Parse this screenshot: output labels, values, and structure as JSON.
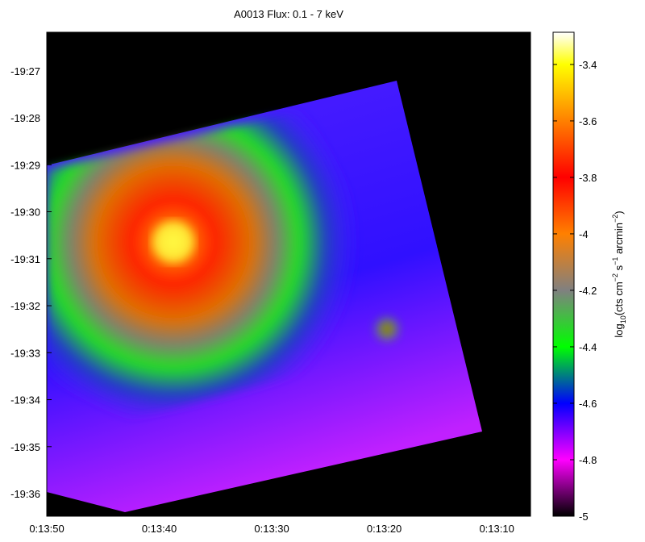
{
  "chart_data": {
    "type": "heatmap",
    "title": "A0013 Flux: 0.1 - 7 keV",
    "xlim": [
      830,
      787
    ],
    "xticks": [
      {
        "value": 830,
        "label": "0:13:50"
      },
      {
        "value": 820,
        "label": "0:13:40"
      },
      {
        "value": 810,
        "label": "0:13:30"
      },
      {
        "value": 800,
        "label": "0:13:20"
      },
      {
        "value": 790,
        "label": "0:13:10"
      }
    ],
    "ylim": [
      -1176.48,
      -1166.18
    ],
    "yticks": [
      {
        "value": -1167,
        "label": "-19:27"
      },
      {
        "value": -1168,
        "label": "-19:28"
      },
      {
        "value": -1169,
        "label": "-19:29"
      },
      {
        "value": -1170,
        "label": "-19:30"
      },
      {
        "value": -1171,
        "label": "-19:31"
      },
      {
        "value": -1172,
        "label": "-19:32"
      },
      {
        "value": -1173,
        "label": "-19:33"
      },
      {
        "value": -1174,
        "label": "-19:34"
      },
      {
        "value": -1175,
        "label": "-19:35"
      },
      {
        "value": -1176,
        "label": "-19:36"
      }
    ],
    "colorbar_lim": [
      -5,
      -3.286
    ],
    "colorbar_ticks": [
      -5,
      -4.8,
      -4.6,
      -4.4,
      -4.2,
      -4,
      -3.8,
      -3.6,
      -3.4
    ],
    "colorbar_label": [
      "log",
      "10",
      "(cts cm",
      "−2",
      " s",
      "−1",
      " arcmin",
      "−2",
      ")"
    ],
    "colormap": [
      {
        "value": -5,
        "color": "#000000"
      },
      {
        "value": -4.8,
        "color": "#ff00ff"
      },
      {
        "value": -4.6,
        "color": "#0000ff"
      },
      {
        "value": -4.4,
        "color": "#00ff00"
      },
      {
        "value": -4.2,
        "color": "#808080"
      },
      {
        "value": -4,
        "color": "#ff8000"
      },
      {
        "value": -3.8,
        "color": "#ff0000"
      },
      {
        "value": -3.6,
        "color": "#ff8000"
      },
      {
        "value": -3.4,
        "color": "#ffff00"
      },
      {
        "value": -3.286,
        "color": "#ffffff"
      }
    ]
  }
}
